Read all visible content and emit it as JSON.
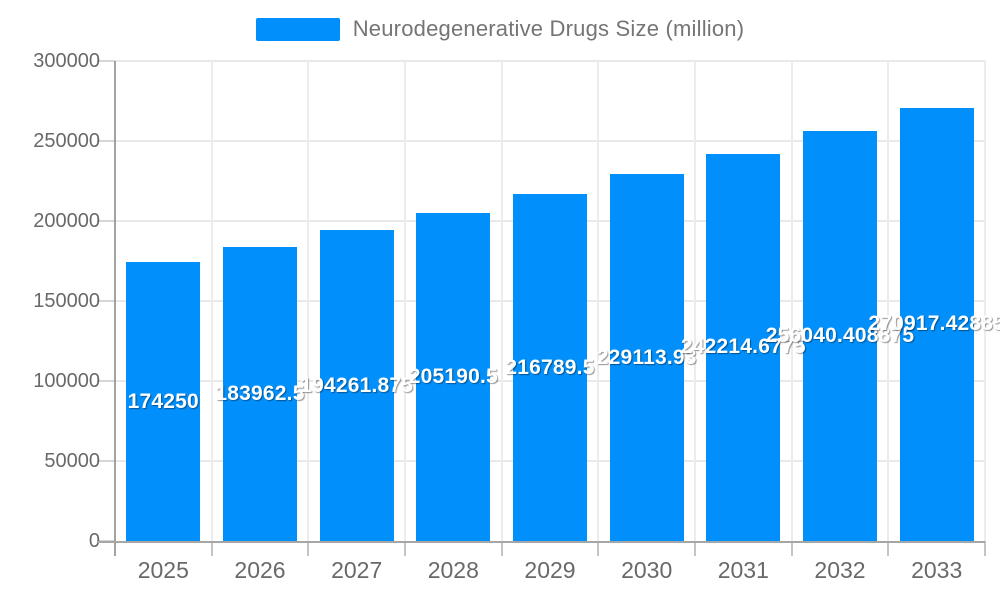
{
  "legend": {
    "label": "Neurodegenerative Drugs Size (million)",
    "swatch_color": "#008FFB"
  },
  "chart_data": {
    "type": "bar",
    "title": "Neurodegenerative Drugs Size (million)",
    "categories": [
      "2025",
      "2026",
      "2027",
      "2028",
      "2029",
      "2030",
      "2031",
      "2032",
      "2033"
    ],
    "values": [
      174250,
      183962.5,
      194261.875,
      205190.5,
      216789.5,
      229113.93,
      242214.6775,
      256040.408875,
      270917.42885
    ],
    "bar_labels": [
      "174250",
      "183962.5",
      "194261.875",
      "205190.5",
      "216789.5",
      "229113.93",
      "242214.6775",
      "256040.408875",
      "270917.42885"
    ],
    "xlabel": "",
    "ylabel": "",
    "ylim": [
      0,
      300000
    ],
    "y_ticks": [
      0,
      50000,
      100000,
      150000,
      200000,
      250000,
      300000
    ],
    "y_tick_labels": [
      "0",
      "50000",
      "100000",
      "150000",
      "200000",
      "250000",
      "300000"
    ],
    "grid": true,
    "legend_position": "top",
    "bar_color": "#008FFB",
    "data_label_color": "#ffffff"
  },
  "colors": {
    "bar": "#008FFB",
    "grid_line": "#e9e9e9",
    "axis_line": "#a6a6a6",
    "axis_text": "#67696b",
    "legend_text": "#757575"
  }
}
